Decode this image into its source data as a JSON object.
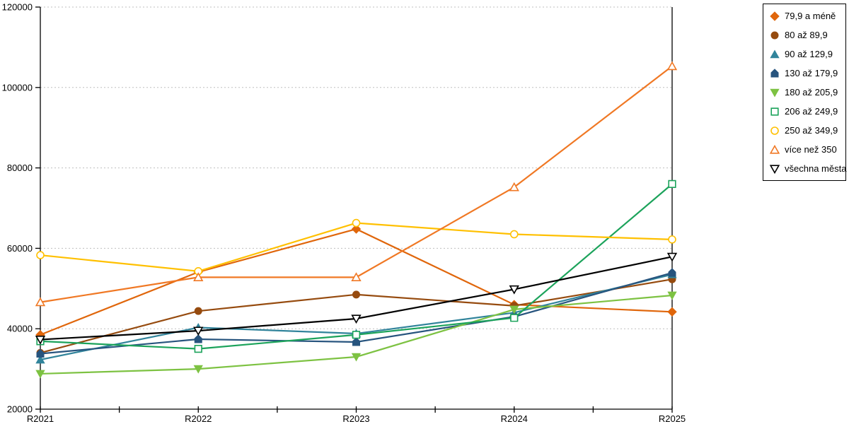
{
  "chart_data": {
    "type": "line",
    "title": "",
    "xlabel": "",
    "ylabel": "",
    "categories": [
      "R2021",
      "R2022",
      "R2023",
      "R2024",
      "R2025"
    ],
    "y_ticks": [
      20000,
      40000,
      60000,
      80000,
      100000,
      120000
    ],
    "y_tick_labels": [
      "20000",
      "40000",
      "60000",
      "80000",
      "100000",
      "120000"
    ],
    "ylim": [
      20000,
      120000
    ],
    "grid": "horizontal-dotted",
    "legend_position": "top-right",
    "series": [
      {
        "name": "79,9 a méně",
        "color": "#E0660B",
        "marker": "diamond",
        "values": [
          38500,
          54100,
          64800,
          46000,
          44200
        ]
      },
      {
        "name": "80 až 89,9",
        "color": "#964B0F",
        "marker": "circle",
        "values": [
          34000,
          44400,
          48500,
          45700,
          52300
        ]
      },
      {
        "name": "90 až 129,9",
        "color": "#31849B",
        "marker": "triangle-up",
        "values": [
          32300,
          40300,
          38800,
          44000,
          53500
        ]
      },
      {
        "name": "130 až 179,9",
        "color": "#27547E",
        "marker": "pentagon",
        "values": [
          33800,
          37400,
          36700,
          43000,
          53900
        ]
      },
      {
        "name": "180 až 205,9",
        "color": "#7DC242",
        "marker": "triangle-down",
        "values": [
          28800,
          30000,
          33000,
          44800,
          48300
        ]
      },
      {
        "name": "206 až 249,9",
        "color": "#1CA35B",
        "marker": "square-open",
        "values": [
          36900,
          35000,
          38500,
          42700,
          76000
        ]
      },
      {
        "name": "250 až 349,9",
        "color": "#FFC000",
        "marker": "circle-open",
        "values": [
          58300,
          54300,
          66300,
          63500,
          62200
        ]
      },
      {
        "name": "více než 350",
        "color": "#F07824",
        "marker": "triangle-up-open",
        "values": [
          46600,
          52800,
          52800,
          75200,
          105300
        ]
      },
      {
        "name": "všechna města",
        "color": "#000000",
        "marker": "triangle-down-open",
        "values": [
          37300,
          39500,
          42500,
          49800,
          57900
        ]
      }
    ]
  },
  "colors": {
    "background": "#FFFFFF",
    "axis": "#000000",
    "gridline": "#BFBFBF",
    "legend_border": "#000000",
    "open_marker_fill": "#FFFFFF"
  }
}
